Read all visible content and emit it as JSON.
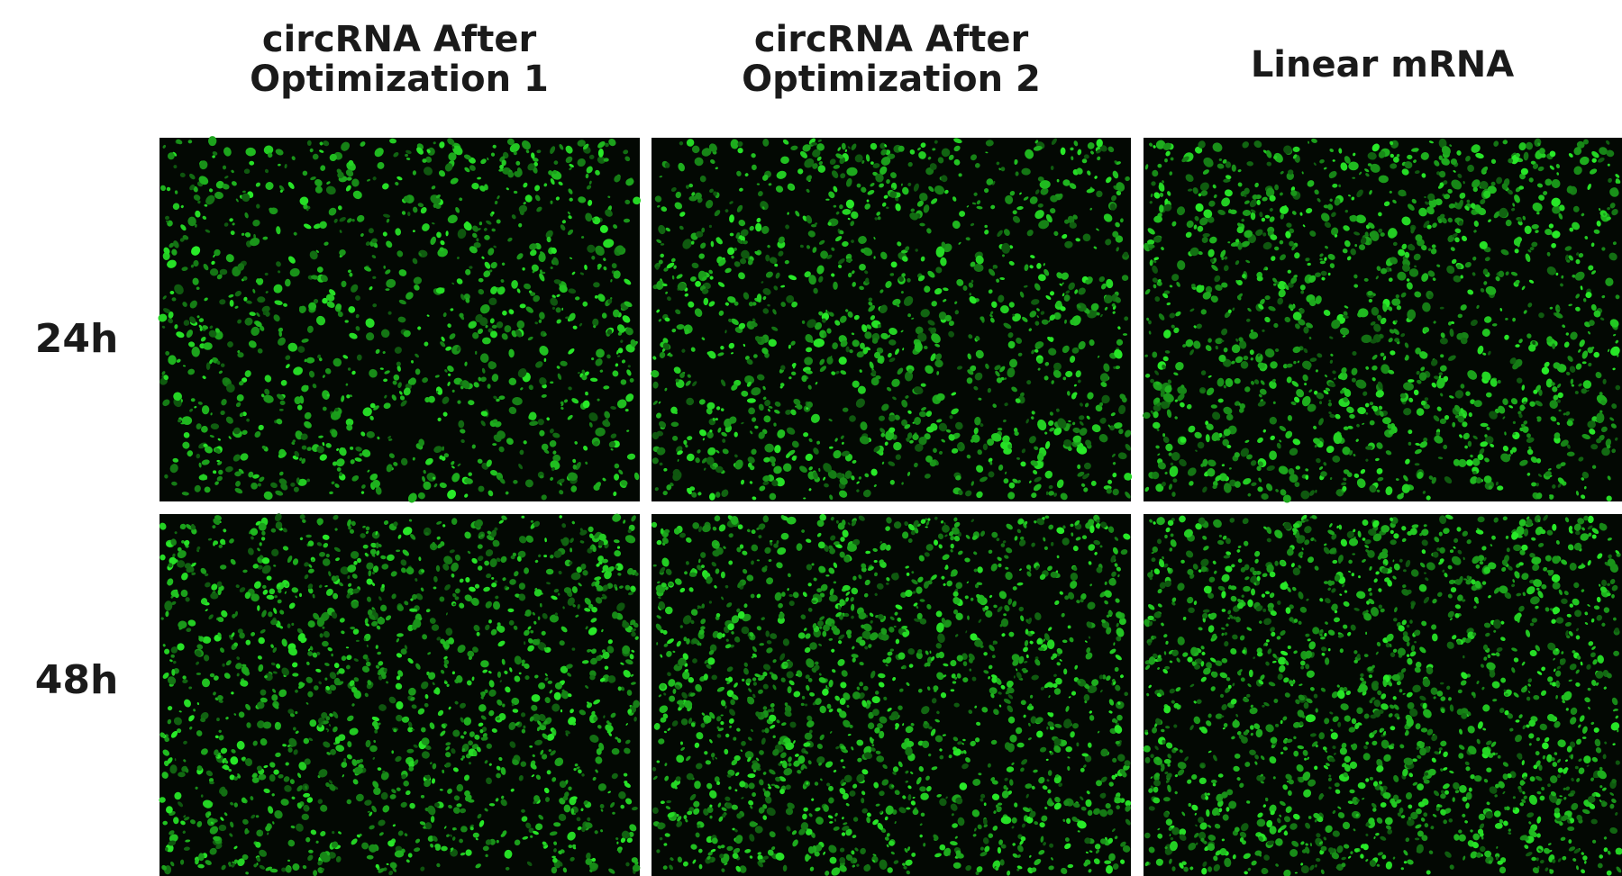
{
  "columns": [
    {
      "lines": [
        "circRNA After",
        "Optimization 1"
      ]
    },
    {
      "lines": [
        "circRNA After",
        "Optimization 2"
      ]
    },
    {
      "lines": [
        "Linear mRNA"
      ]
    }
  ],
  "rows": [
    {
      "label": "24h"
    },
    {
      "label": "48h"
    }
  ]
}
